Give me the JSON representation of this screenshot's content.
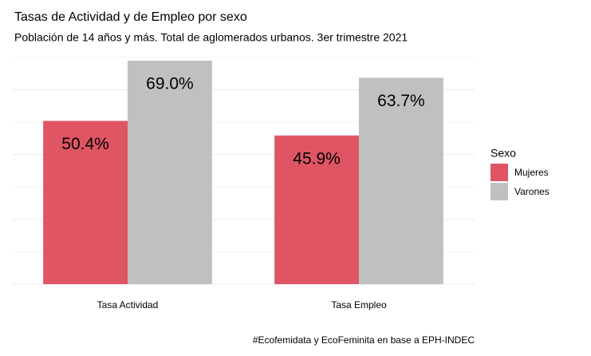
{
  "chart_data": {
    "type": "bar",
    "title": "Tasas de Actividad y de Empleo por sexo",
    "subtitle": "Población de 14 años y más. Total de aglomerados urbanos. 3er trimestre 2021",
    "caption": "#Ecofemidata y EcoFeminita en base a EPH-INDEC",
    "categories": [
      "Tasa Actividad",
      "Tasa Empleo"
    ],
    "series": [
      {
        "name": "Mujeres",
        "color": "#e05564",
        "values": [
          50.4,
          45.9
        ],
        "value_labels": [
          "50.4%",
          "45.9%"
        ]
      },
      {
        "name": "Varones",
        "color": "#c0c0c0",
        "values": [
          69.0,
          63.7
        ],
        "value_labels": [
          "69.0%",
          "63.7%"
        ]
      }
    ],
    "legend_title": "Sexo",
    "legend": "right",
    "ylim": [
      0,
      72.45
    ],
    "yticks": [
      0,
      10,
      20,
      30,
      40,
      50,
      60,
      70
    ],
    "grid": true
  }
}
